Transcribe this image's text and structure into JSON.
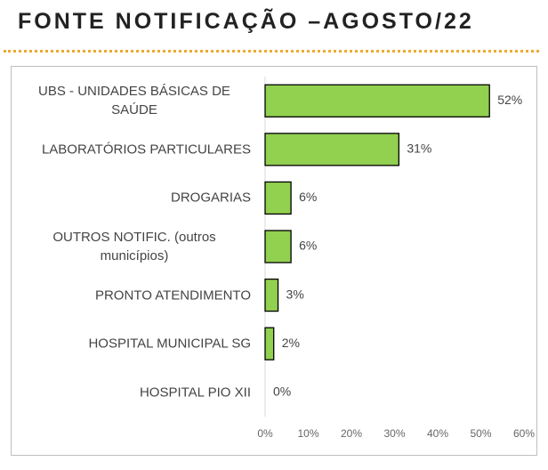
{
  "chart_data": {
    "type": "barh",
    "title": "FONTE NOTIFICAÇÃO –AGOSTO/22",
    "categories": [
      "UBS - UNIDADES BÁSICAS DE SAÚDE",
      "LABORATÓRIOS PARTICULARES",
      "DROGARIAS",
      "OUTROS NOTIFIC. (outros municípios)",
      "PRONTO ATENDIMENTO",
      "HOSPITAL MUNICIPAL SG",
      "HOSPITAL PIO XII"
    ],
    "values": [
      52,
      31,
      6,
      6,
      3,
      2,
      0
    ],
    "value_labels": [
      "52%",
      "31%",
      "6%",
      "6%",
      "3%",
      "2%",
      "0%"
    ],
    "color": "#92d050",
    "xlim": [
      0,
      60
    ],
    "xticks": [
      {
        "value": 0,
        "label": "0%"
      },
      {
        "value": 10,
        "label": "10%"
      },
      {
        "value": 20,
        "label": "20%"
      },
      {
        "value": 30,
        "label": "30%"
      },
      {
        "value": 40,
        "label": "40%"
      },
      {
        "value": 50,
        "label": "50%"
      },
      {
        "value": 60,
        "label": "60%"
      }
    ],
    "grid": false
  }
}
